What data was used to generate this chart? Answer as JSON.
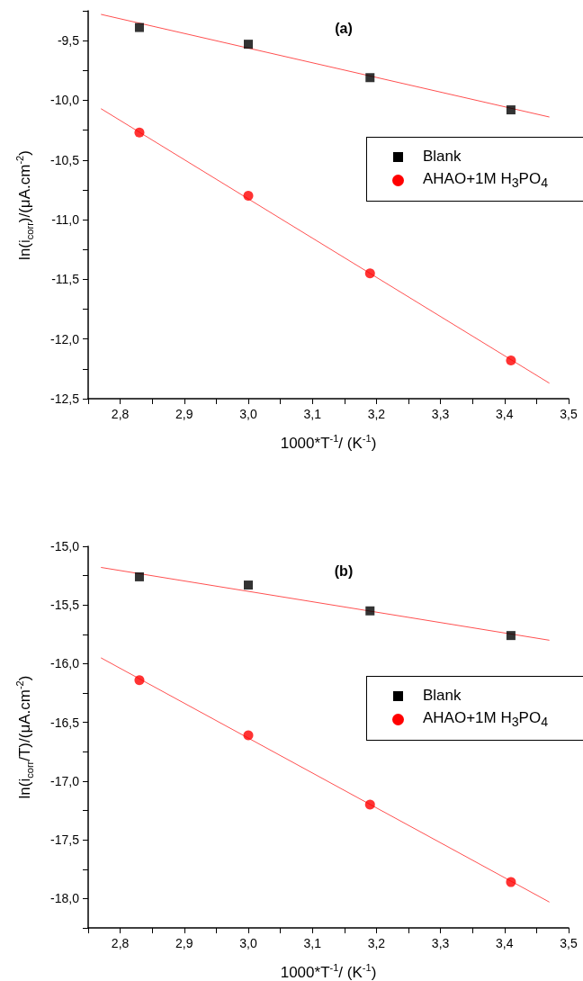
{
  "chart_data": [
    {
      "type": "scatter",
      "title": "(a)",
      "xlabel": "1000*T$^{-1}$/ (K$^{-1}$)",
      "ylabel": "ln(i$_{corr}$)/(μA.cm$^{-2}$)",
      "xlim": [
        2.75,
        3.5
      ],
      "ylim": [
        -12.5,
        -9.25
      ],
      "xticks": [
        {
          "value": 2.75,
          "label": null
        },
        {
          "value": 2.8,
          "label": "2,8"
        },
        {
          "value": 2.85,
          "label": null
        },
        {
          "value": 2.9,
          "label": "2,9"
        },
        {
          "value": 2.95,
          "label": null
        },
        {
          "value": 3.0,
          "label": "3,0"
        },
        {
          "value": 3.05,
          "label": null
        },
        {
          "value": 3.1,
          "label": "3,1"
        },
        {
          "value": 3.15,
          "label": null
        },
        {
          "value": 3.2,
          "label": "3,2"
        },
        {
          "value": 3.25,
          "label": null
        },
        {
          "value": 3.3,
          "label": "3,3"
        },
        {
          "value": 3.35,
          "label": null
        },
        {
          "value": 3.4,
          "label": "3,4"
        },
        {
          "value": 3.45,
          "label": null
        },
        {
          "value": 3.5,
          "label": "3,5"
        }
      ],
      "yticks": [
        {
          "value": -12.5,
          "label": "-12,5"
        },
        {
          "value": -12.25,
          "label": null
        },
        {
          "value": -12.0,
          "label": "-12,0"
        },
        {
          "value": -11.75,
          "label": null
        },
        {
          "value": -11.5,
          "label": "-11,5"
        },
        {
          "value": -11.25,
          "label": null
        },
        {
          "value": -11.0,
          "label": "-11,0"
        },
        {
          "value": -10.75,
          "label": null
        },
        {
          "value": -10.5,
          "label": "-10,5"
        },
        {
          "value": -10.25,
          "label": null
        },
        {
          "value": -10.0,
          "label": "-10,0"
        },
        {
          "value": -9.75,
          "label": null
        },
        {
          "value": -9.5,
          "label": "-9,5"
        },
        {
          "value": -9.25,
          "label": null
        }
      ],
      "grid": false,
      "legend": "right",
      "series": [
        {
          "name": "Blank",
          "color": "#000000",
          "marker": "square",
          "x": [
            2.83,
            3.0,
            3.19,
            3.41
          ],
          "values": [
            -9.39,
            -9.53,
            -9.81,
            -10.08
          ]
        },
        {
          "name": "AHAO+1M H$_{3}$PO$_{4}$",
          "color": "#ff0000",
          "marker": "circle",
          "x": [
            2.83,
            3.0,
            3.19,
            3.41
          ],
          "values": [
            -10.27,
            -10.8,
            -11.45,
            -12.18
          ]
        },
        {
          "type": "line",
          "color": "#ff5050",
          "marker": "none",
          "x": [
            2.77,
            3.47
          ],
          "values": [
            -9.28,
            -10.14
          ]
        },
        {
          "type": "line",
          "color": "#ff5050",
          "marker": "none",
          "x": [
            2.77,
            3.47
          ],
          "values": [
            -10.07,
            -12.37
          ]
        }
      ]
    },
    {
      "type": "scatter",
      "title": "(b)",
      "xlabel": "1000*T$^{-1}$/ (K$^{-1}$)",
      "ylabel": "ln(i$_{corr}$/T)/(μA.cm$^{-2}$)",
      "xlim": [
        2.75,
        3.5
      ],
      "ylim": [
        -18.25,
        -15.0
      ],
      "xticks": [
        {
          "value": 2.75,
          "label": null
        },
        {
          "value": 2.8,
          "label": "2,8"
        },
        {
          "value": 2.85,
          "label": null
        },
        {
          "value": 2.9,
          "label": "2,9"
        },
        {
          "value": 2.95,
          "label": null
        },
        {
          "value": 3.0,
          "label": "3,0"
        },
        {
          "value": 3.05,
          "label": null
        },
        {
          "value": 3.1,
          "label": "3,1"
        },
        {
          "value": 3.15,
          "label": null
        },
        {
          "value": 3.2,
          "label": "3,2"
        },
        {
          "value": 3.25,
          "label": null
        },
        {
          "value": 3.3,
          "label": "3,3"
        },
        {
          "value": 3.35,
          "label": null
        },
        {
          "value": 3.4,
          "label": "3,4"
        },
        {
          "value": 3.45,
          "label": null
        },
        {
          "value": 3.5,
          "label": "3,5"
        }
      ],
      "yticks": [
        {
          "value": -18.25,
          "label": null
        },
        {
          "value": -18.0,
          "label": "-18,0"
        },
        {
          "value": -17.75,
          "label": null
        },
        {
          "value": -17.5,
          "label": "-17,5"
        },
        {
          "value": -17.25,
          "label": null
        },
        {
          "value": -17.0,
          "label": "-17,0"
        },
        {
          "value": -16.75,
          "label": null
        },
        {
          "value": -16.5,
          "label": "-16,5"
        },
        {
          "value": -16.25,
          "label": null
        },
        {
          "value": -16.0,
          "label": "-16,0"
        },
        {
          "value": -15.75,
          "label": null
        },
        {
          "value": -15.5,
          "label": "-15,5"
        },
        {
          "value": -15.25,
          "label": null
        },
        {
          "value": -15.0,
          "label": "-15,0"
        }
      ],
      "grid": false,
      "legend": "right",
      "series": [
        {
          "name": "Blank",
          "color": "#000000",
          "marker": "square",
          "x": [
            2.83,
            3.0,
            3.19,
            3.41
          ],
          "values": [
            -15.26,
            -15.33,
            -15.55,
            -15.76
          ]
        },
        {
          "name": "AHAO+1M H$_{3}$PO$_{4}$",
          "color": "#ff0000",
          "marker": "circle",
          "x": [
            2.83,
            3.0,
            3.19,
            3.41
          ],
          "values": [
            -16.14,
            -16.61,
            -17.2,
            -17.86
          ]
        },
        {
          "type": "line",
          "color": "#ff5050",
          "marker": "none",
          "x": [
            2.77,
            3.47
          ],
          "values": [
            -15.18,
            -15.8
          ]
        },
        {
          "type": "line",
          "color": "#ff5050",
          "marker": "none",
          "x": [
            2.77,
            3.47
          ],
          "values": [
            -15.95,
            -18.03
          ]
        }
      ]
    }
  ]
}
